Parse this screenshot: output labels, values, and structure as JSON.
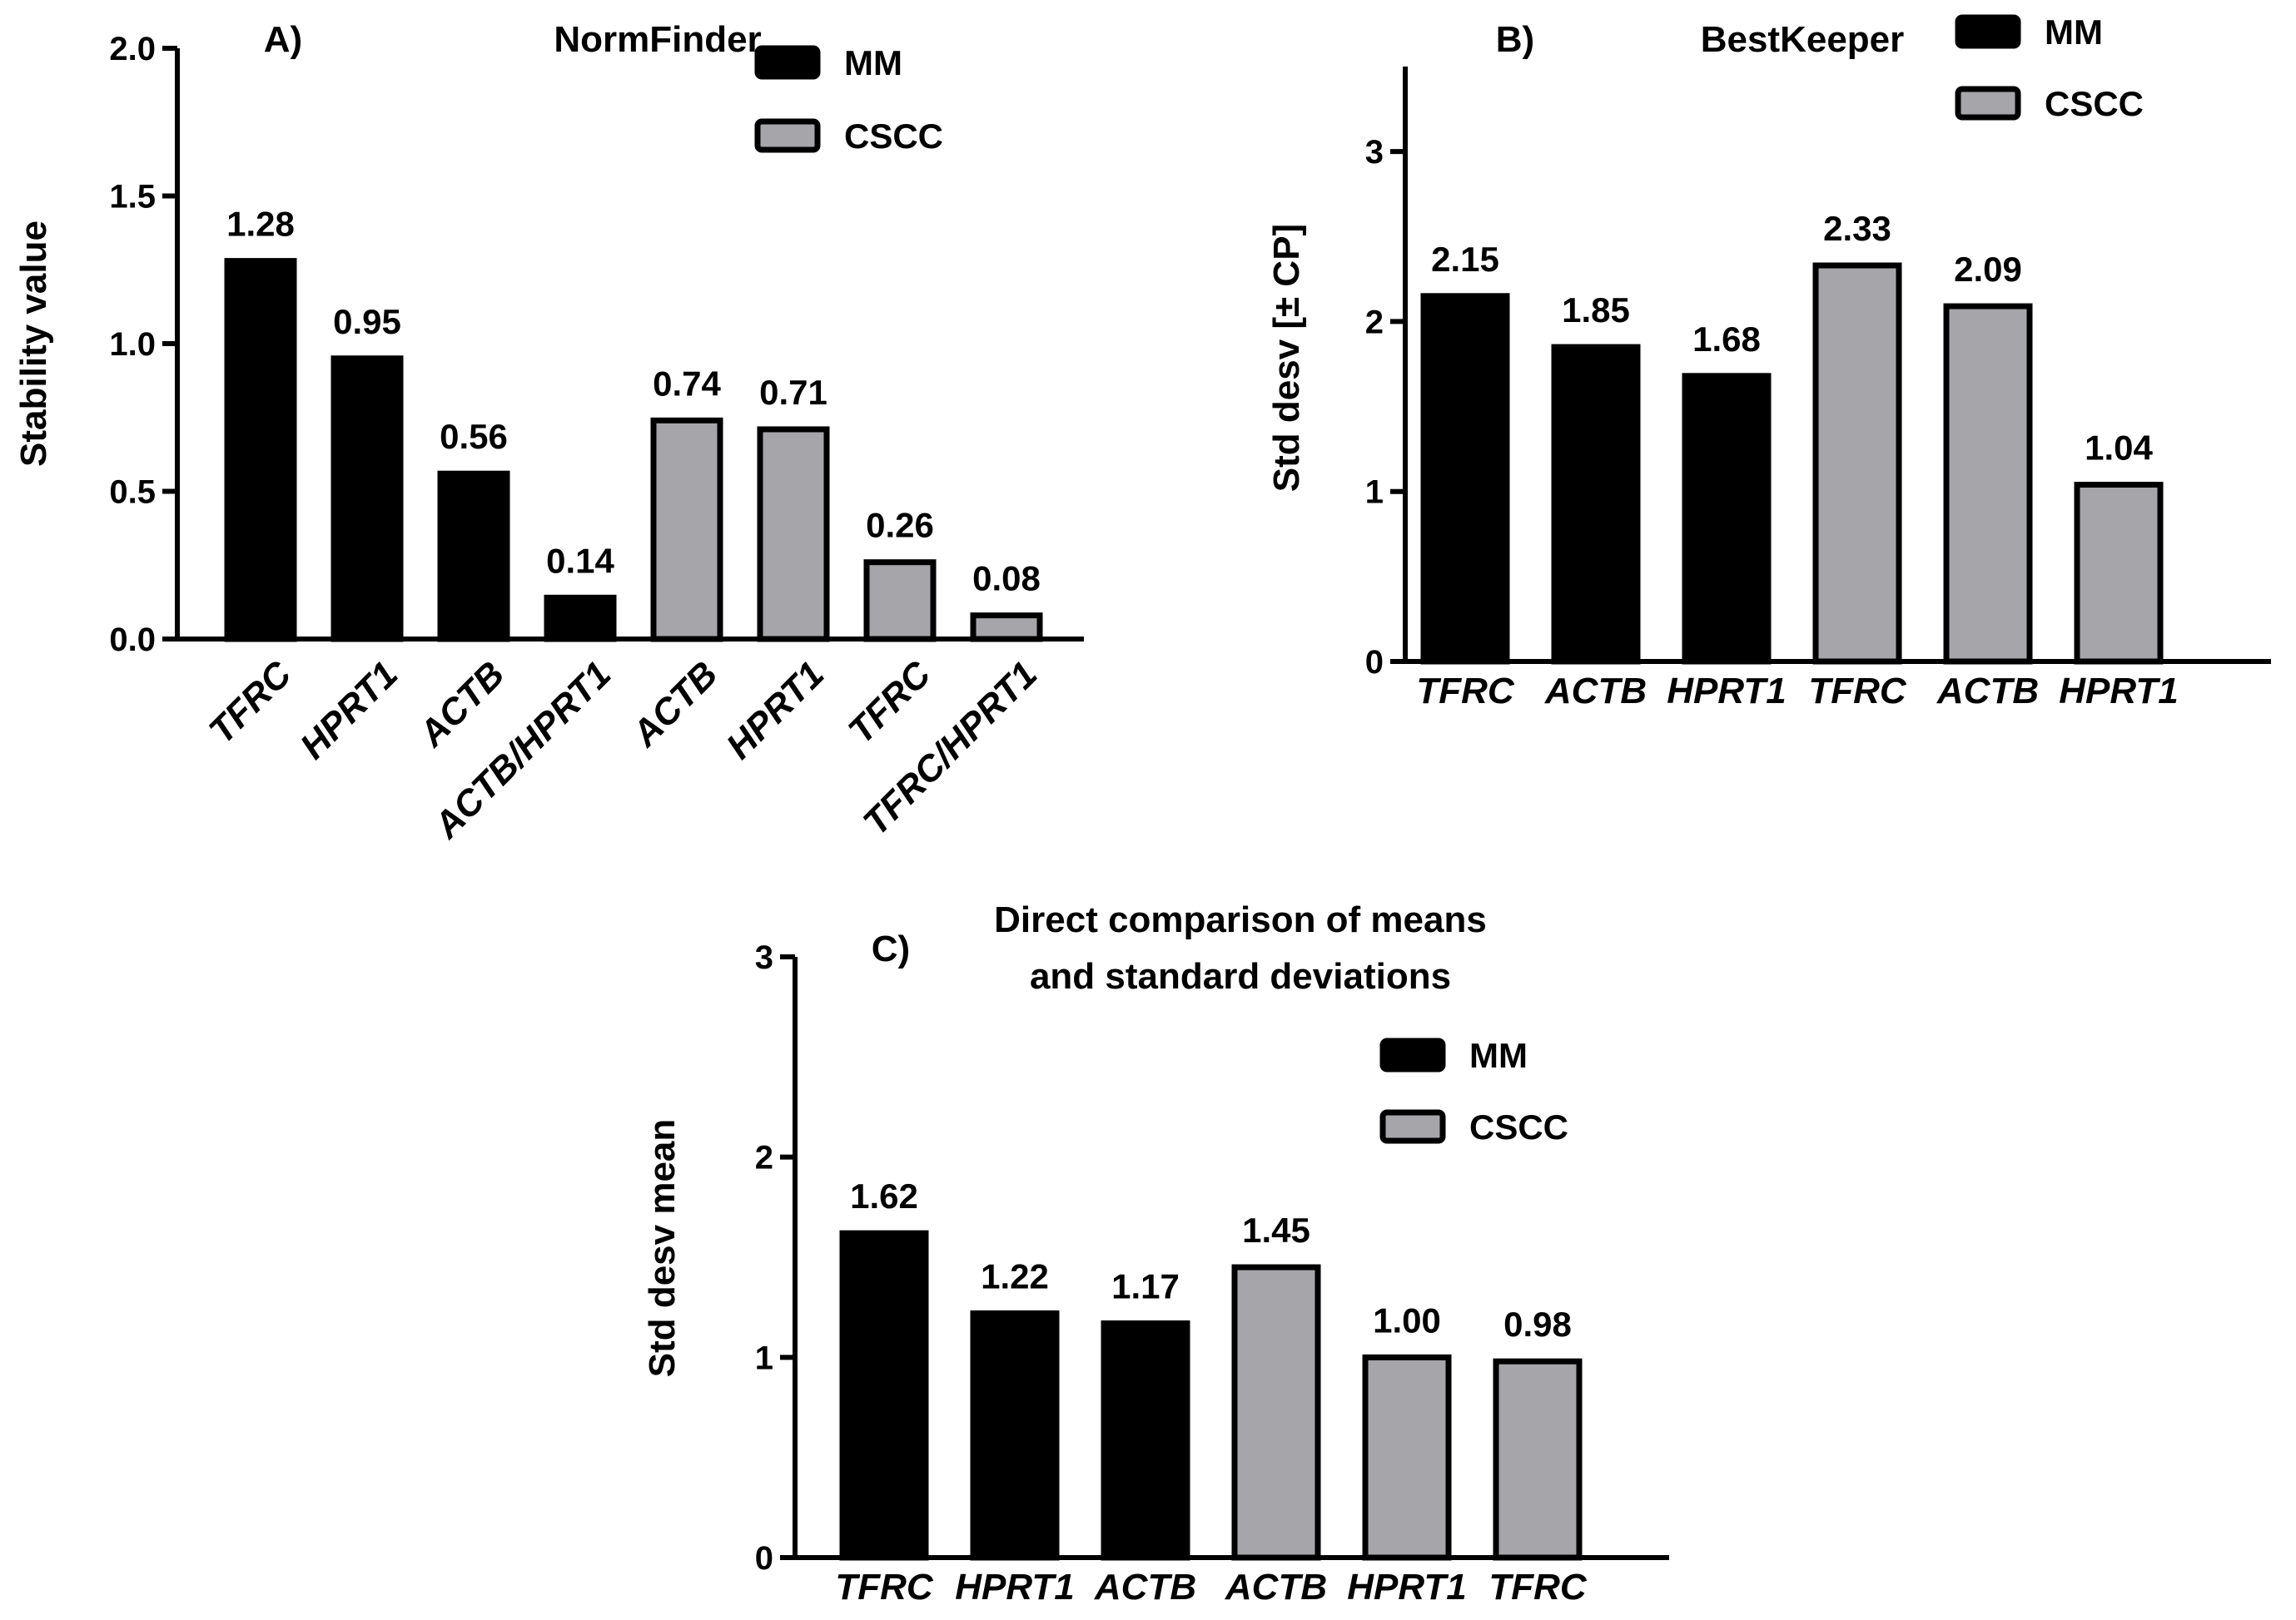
{
  "figure": {
    "colors": {
      "MM": "#000000",
      "CSCC": "#a6a6aa"
    },
    "legend": [
      "MM",
      "CSCC"
    ]
  },
  "chart_data": [
    {
      "id": "A",
      "type": "bar",
      "panel_letter": "A)",
      "title": "NormFinder",
      "xlabel": "",
      "ylabel": "Stability value",
      "ylim": [
        0,
        2.0
      ],
      "yticks": [
        0.0,
        0.5,
        1.0,
        1.5,
        2.0
      ],
      "ytick_labels": [
        "0.0",
        "0.5",
        "1.0",
        "1.5",
        "2.0"
      ],
      "categories": [
        "TFRC",
        "HPRT1",
        "ACTB",
        "ACTB/HPRT1",
        "ACTB",
        "HPRT1",
        "TFRC",
        "TFRC/HPRT1"
      ],
      "groups": [
        "MM",
        "MM",
        "MM",
        "MM",
        "CSCC",
        "CSCC",
        "CSCC",
        "CSCC"
      ],
      "values": [
        1.28,
        0.95,
        0.56,
        0.14,
        0.74,
        0.71,
        0.26,
        0.08
      ],
      "value_labels": [
        "1.28",
        "0.95",
        "0.56",
        "0.14",
        "0.74",
        "0.71",
        "0.26",
        "0.08"
      ],
      "legend_position": "top-right"
    },
    {
      "id": "B",
      "type": "bar",
      "panel_letter": "B)",
      "title": "BestKeeper",
      "xlabel": "",
      "ylabel": "Std desv [± CP]",
      "ylim": [
        0,
        3.5
      ],
      "yticks": [
        0,
        1,
        2,
        3
      ],
      "ytick_labels": [
        "0",
        "1",
        "2",
        "3"
      ],
      "categories": [
        "TFRC",
        "ACTB",
        "HPRT1",
        "TFRC",
        "ACTB",
        "HPRT1"
      ],
      "groups": [
        "MM",
        "MM",
        "MM",
        "CSCC",
        "CSCC",
        "CSCC"
      ],
      "values": [
        2.15,
        1.85,
        1.68,
        2.33,
        2.09,
        1.04
      ],
      "value_labels": [
        "2.15",
        "1.85",
        "1.68",
        "2.33",
        "2.09",
        "1.04"
      ],
      "legend_position": "top-right"
    },
    {
      "id": "C",
      "type": "bar",
      "panel_letter": "C)",
      "title": [
        "Direct comparison of means",
        "and standard deviations"
      ],
      "xlabel": "",
      "ylabel": "Std desv mean",
      "ylim": [
        0,
        3
      ],
      "yticks": [
        0,
        1,
        2,
        3
      ],
      "ytick_labels": [
        "0",
        "1",
        "2",
        "3"
      ],
      "categories": [
        "TFRC",
        "HPRT1",
        "ACTB",
        "ACTB",
        "HPRT1",
        "TFRC"
      ],
      "groups": [
        "MM",
        "MM",
        "MM",
        "CSCC",
        "CSCC",
        "CSCC"
      ],
      "values": [
        1.62,
        1.22,
        1.17,
        1.45,
        1.0,
        0.98
      ],
      "value_labels": [
        "1.62",
        "1.22",
        "1.17",
        "1.45",
        "1.00",
        "0.98"
      ],
      "legend_position": "top-right"
    }
  ]
}
